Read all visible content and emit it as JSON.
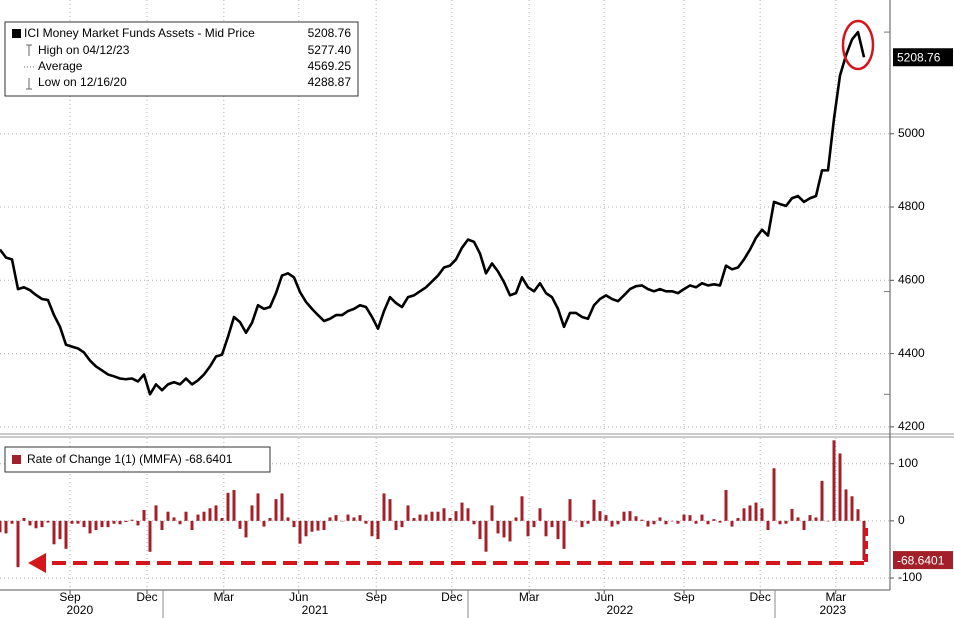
{
  "chart_data": [
    {
      "type": "line",
      "x": [
        0,
        1,
        2,
        3,
        4,
        5,
        6,
        7,
        8,
        9,
        10,
        11,
        12,
        13,
        14,
        15,
        16,
        17,
        18,
        19,
        20,
        21,
        22,
        23,
        24,
        25,
        26,
        27,
        28,
        29,
        30,
        31,
        32,
        33,
        34,
        35,
        36,
        37,
        38,
        39,
        40,
        41,
        42,
        43,
        44,
        45,
        46,
        47,
        48,
        49,
        50,
        51,
        52,
        53,
        54,
        55,
        56,
        57,
        58,
        59,
        60,
        61,
        62,
        63,
        64,
        65,
        66,
        67,
        68,
        69,
        70,
        71,
        72,
        73,
        74,
        75,
        76,
        77,
        78,
        79,
        80,
        81,
        82,
        83,
        84,
        85,
        86,
        87,
        88,
        89,
        90,
        91,
        92,
        93,
        94,
        95,
        96,
        97,
        98,
        99,
        100,
        101,
        102,
        103,
        104,
        105,
        106,
        107,
        108,
        109,
        110,
        111,
        112,
        113,
        114,
        115,
        116,
        117,
        118,
        119,
        120,
        121,
        122,
        123,
        124,
        125,
        126,
        127,
        128,
        129,
        130,
        131,
        132,
        133,
        134,
        135,
        136,
        137,
        138,
        139,
        140,
        141,
        142,
        143,
        144
      ],
      "series": [
        {
          "name": "ICI Money Market Funds Assets - Mid Price",
          "color": "#000000",
          "values": [
            4684,
            4662,
            4657,
            4576,
            4581,
            4573,
            4560,
            4549,
            4546,
            4505,
            4473,
            4424,
            4419,
            4414,
            4403,
            4381,
            4365,
            4354,
            4343,
            4338,
            4332,
            4330,
            4332,
            4324,
            4343,
            4288.87,
            4316,
            4300,
            4316,
            4322,
            4316,
            4332,
            4316,
            4327,
            4343,
            4365,
            4392,
            4397,
            4446,
            4500,
            4486,
            4457,
            4484,
            4532,
            4522,
            4527,
            4565,
            4613,
            4619,
            4608,
            4568,
            4541,
            4522,
            4505,
            4489,
            4495,
            4505,
            4505,
            4516,
            4522,
            4532,
            4527,
            4500,
            4468,
            4516,
            4554,
            4538,
            4527,
            4554,
            4559,
            4570,
            4581,
            4597,
            4613,
            4635,
            4640,
            4657,
            4689,
            4711,
            4705,
            4673,
            4619,
            4646,
            4624,
            4595,
            4559,
            4565,
            4608,
            4581,
            4570,
            4592,
            4565,
            4554,
            4522,
            4473,
            4511,
            4511,
            4500,
            4495,
            4532,
            4549,
            4559,
            4549,
            4543,
            4559,
            4576,
            4584,
            4586,
            4576,
            4570,
            4576,
            4570,
            4570,
            4565,
            4576,
            4586,
            4581,
            4592,
            4586,
            4589,
            4586,
            4640,
            4630,
            4635,
            4657,
            4684,
            4716,
            4738,
            4722,
            4814,
            4808,
            4803,
            4824,
            4830,
            4814,
            4824,
            4830,
            4900,
            4900,
            5041,
            5159,
            5214,
            5257,
            5277.4,
            5208.76
          ]
        }
      ],
      "stats": [
        {
          "label": "High on 04/12/23",
          "value": 5277.4,
          "value_label": "5277.40"
        },
        {
          "label": "Average",
          "value": 4569.25
        },
        {
          "label": "Low on 12/16/20",
          "value": 4288.87
        }
      ],
      "xlim": [
        0,
        148
      ],
      "xticks": [
        11.67,
        24.5,
        37.3,
        49.8,
        62.7,
        75.3,
        88.2,
        100.7,
        114,
        126.7,
        139.3
      ],
      "ylim": [
        4186,
        5365
      ],
      "yticks": [
        4200,
        4400,
        4600,
        4800,
        5000
      ],
      "grid": true
    },
    {
      "type": "bar",
      "x": [
        0,
        1,
        2,
        3,
        4,
        5,
        6,
        7,
        8,
        9,
        10,
        11,
        12,
        13,
        14,
        15,
        16,
        17,
        18,
        19,
        20,
        21,
        22,
        23,
        24,
        25,
        26,
        27,
        28,
        29,
        30,
        31,
        32,
        33,
        34,
        35,
        36,
        37,
        38,
        39,
        40,
        41,
        42,
        43,
        44,
        45,
        46,
        47,
        48,
        49,
        50,
        51,
        52,
        53,
        54,
        55,
        56,
        57,
        58,
        59,
        60,
        61,
        62,
        63,
        64,
        65,
        66,
        67,
        68,
        69,
        70,
        71,
        72,
        73,
        74,
        75,
        76,
        77,
        78,
        79,
        80,
        81,
        82,
        83,
        84,
        85,
        86,
        87,
        88,
        89,
        90,
        91,
        92,
        93,
        94,
        95,
        96,
        97,
        98,
        99,
        100,
        101,
        102,
        103,
        104,
        105,
        106,
        107,
        108,
        109,
        110,
        111,
        112,
        113,
        114,
        115,
        116,
        117,
        118,
        119,
        120,
        121,
        122,
        123,
        124,
        125,
        126,
        127,
        128,
        129,
        130,
        131,
        132,
        133,
        134,
        135,
        136,
        137,
        138,
        139,
        140,
        141,
        142,
        143,
        144
      ],
      "series": [
        {
          "name": "Rate of Change 1(1) (MMFA)",
          "color": "#a3202a",
          "values": [
            -20,
            -22,
            -5,
            -81,
            5,
            -8,
            -13,
            -11,
            -3,
            -41,
            -32,
            -49,
            -5,
            -5,
            -11,
            -22,
            -16,
            -11,
            -11,
            -5,
            -6,
            -2,
            2,
            -8,
            19,
            -54.13,
            27.13,
            -16,
            16,
            6,
            -6,
            16,
            -16,
            11,
            16,
            22,
            27,
            5,
            49,
            54,
            -14,
            -29,
            27,
            48,
            -10,
            5,
            38,
            48,
            6,
            -11,
            -40,
            -27,
            -19,
            -17,
            -16,
            6,
            10,
            0,
            11,
            6,
            10,
            -5,
            -27,
            -32,
            48,
            38,
            -16,
            -11,
            27,
            5,
            11,
            11,
            16,
            16,
            22,
            5,
            17,
            32,
            22,
            -6,
            -32,
            -54,
            27,
            -22,
            -29,
            -36,
            6,
            43,
            -27,
            -11,
            22,
            -27,
            -11,
            -32,
            -49,
            38,
            0,
            -11,
            -5,
            37,
            17,
            10,
            -10,
            -6,
            16,
            17,
            8,
            2,
            -10,
            -6,
            6,
            -6,
            0,
            -5,
            11,
            10,
            -5,
            11,
            -6,
            3,
            -3,
            54,
            -10,
            5,
            22,
            27,
            32,
            22,
            -16,
            92,
            -6,
            -5,
            21,
            6,
            -16,
            10,
            6,
            70,
            0,
            141,
            118,
            55,
            43,
            20.4,
            -68.6401
          ]
        }
      ],
      "xlim": [
        0,
        148
      ],
      "xticks": [
        {
          "value": 11.67,
          "label": "Sep"
        },
        {
          "value": 24.5,
          "label": "Dec"
        },
        {
          "value": 37.3,
          "label": "Mar"
        },
        {
          "value": 49.8,
          "label": "Jun"
        },
        {
          "value": 62.7,
          "label": "Sep"
        },
        {
          "value": 75.3,
          "label": "Dec"
        },
        {
          "value": 88.2,
          "label": "Mar"
        },
        {
          "value": 100.7,
          "label": "Jun"
        },
        {
          "value": 114,
          "label": "Sep"
        },
        {
          "value": 126.7,
          "label": "Dec"
        },
        {
          "value": 139.3,
          "label": "Mar"
        }
      ],
      "x_year_ticks": [
        {
          "value": 13.3,
          "label": "2020"
        },
        {
          "value": 52.5,
          "label": "2021"
        },
        {
          "value": 103.3,
          "label": "2022"
        },
        {
          "value": 138.8,
          "label": "2023"
        }
      ],
      "ylim": [
        -121,
        145
      ],
      "yticks": [
        -100,
        0,
        100
      ],
      "grid": true
    }
  ]
}
